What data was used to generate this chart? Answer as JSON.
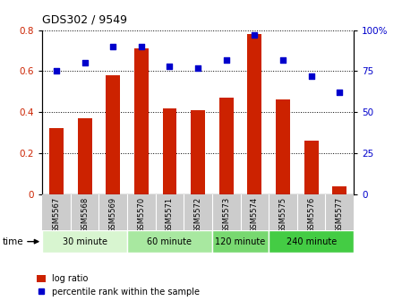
{
  "title": "GDS302 / 9549",
  "samples": [
    "GSM5567",
    "GSM5568",
    "GSM5569",
    "GSM5570",
    "GSM5571",
    "GSM5572",
    "GSM5573",
    "GSM5574",
    "GSM5575",
    "GSM5576",
    "GSM5577"
  ],
  "log_ratio": [
    0.32,
    0.37,
    0.58,
    0.71,
    0.42,
    0.41,
    0.47,
    0.78,
    0.46,
    0.26,
    0.04
  ],
  "percentile_rank": [
    75,
    80,
    90,
    90,
    78,
    77,
    82,
    97,
    82,
    72,
    62
  ],
  "bar_color": "#cc2200",
  "dot_color": "#0000cc",
  "ylim_left": [
    0,
    0.8
  ],
  "ylim_right": [
    0,
    100
  ],
  "yticks_left": [
    0,
    0.2,
    0.4,
    0.6,
    0.8
  ],
  "yticks_right": [
    0,
    25,
    50,
    75,
    100
  ],
  "groups": [
    {
      "label": "30 minute",
      "start": 0,
      "end": 3,
      "color": "#d8f5d0"
    },
    {
      "label": "60 minute",
      "start": 3,
      "end": 6,
      "color": "#a8e8a0"
    },
    {
      "label": "120 minute",
      "start": 6,
      "end": 8,
      "color": "#78d870"
    },
    {
      "label": "240 minute",
      "start": 8,
      "end": 11,
      "color": "#44cc44"
    }
  ],
  "time_label": "time",
  "legend_bar_label": "log ratio",
  "legend_dot_label": "percentile rank within the sample",
  "grid_color": "#000000",
  "background_color": "#ffffff",
  "bar_width": 0.5,
  "label_bg_color": "#cccccc"
}
